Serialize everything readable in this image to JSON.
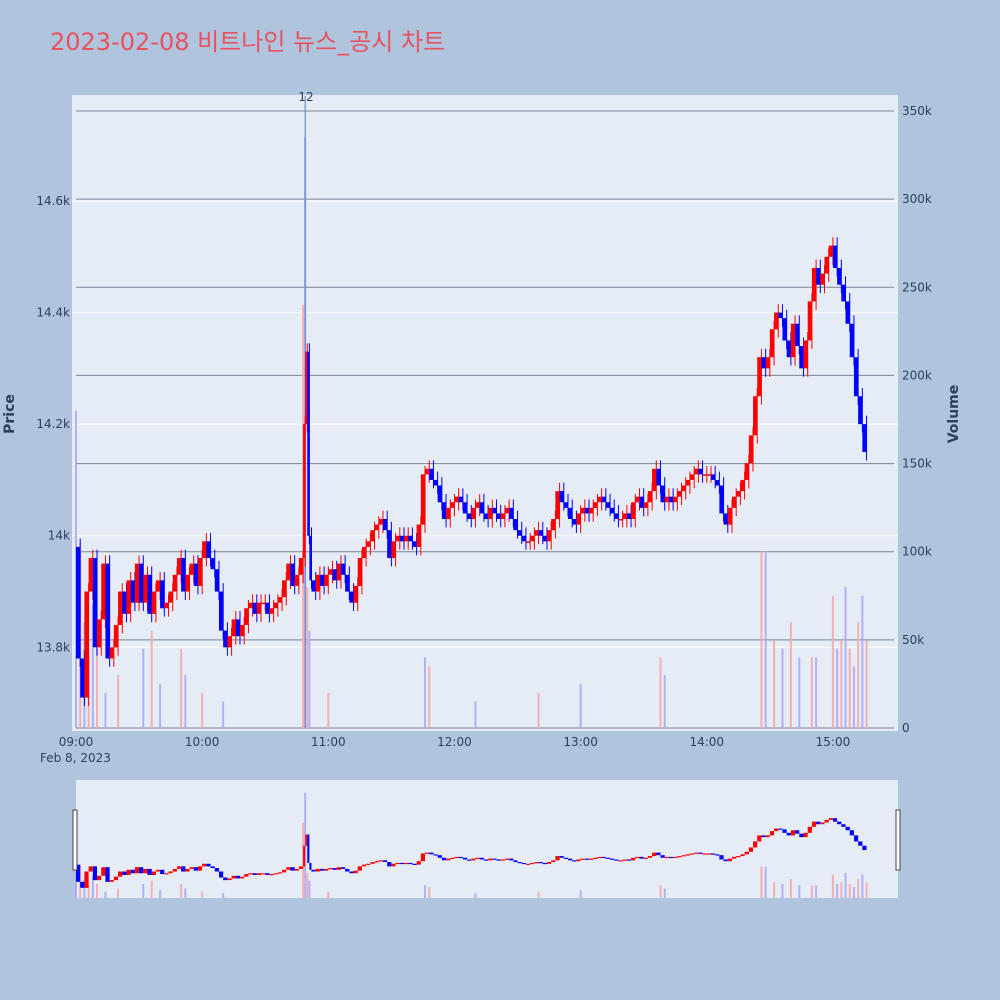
{
  "chart_data": {
    "type": "candlestick",
    "title": "2023-02-08 비트나인 뉴스_공시 차트",
    "x_axis": {
      "tick_labels": [
        "09:00",
        "10:00",
        "11:00",
        "12:00",
        "13:00",
        "14:00",
        "15:00"
      ],
      "date_label": "Feb 8, 2023",
      "range": [
        "09:00",
        "15:30"
      ]
    },
    "y_axis_price": {
      "label": "Price",
      "tick_labels": [
        "13.8k",
        "14k",
        "14.2k",
        "14.4k",
        "14.6k"
      ],
      "tick_values": [
        13800,
        14000,
        14200,
        14400,
        14600
      ],
      "range": [
        13650,
        14790
      ]
    },
    "y_axis_volume": {
      "label": "Volume",
      "tick_labels": [
        "0",
        "50k",
        "100k",
        "150k",
        "200k",
        "250k",
        "300k",
        "350k"
      ],
      "tick_values": [
        0,
        50000,
        100000,
        150000,
        200000,
        250000,
        300000,
        350000
      ],
      "range": [
        0,
        358000
      ]
    },
    "annotation": {
      "label": "12",
      "time": "10:49"
    },
    "increasing_color": "#ff0000",
    "decreasing_color": "#0000ff",
    "price_path": [
      [
        "09:00",
        13980
      ],
      [
        "09:02",
        13780
      ],
      [
        "09:04",
        13710
      ],
      [
        "09:06",
        13900
      ],
      [
        "09:08",
        13960
      ],
      [
        "09:10",
        13800
      ],
      [
        "09:12",
        13850
      ],
      [
        "09:14",
        13950
      ],
      [
        "09:16",
        13780
      ],
      [
        "09:18",
        13800
      ],
      [
        "09:20",
        13840
      ],
      [
        "09:22",
        13900
      ],
      [
        "09:24",
        13860
      ],
      [
        "09:26",
        13920
      ],
      [
        "09:28",
        13880
      ],
      [
        "09:30",
        13950
      ],
      [
        "09:32",
        13880
      ],
      [
        "09:34",
        13930
      ],
      [
        "09:36",
        13860
      ],
      [
        "09:38",
        13900
      ],
      [
        "09:40",
        13920
      ],
      [
        "09:42",
        13870
      ],
      [
        "09:44",
        13880
      ],
      [
        "09:46",
        13900
      ],
      [
        "09:48",
        13930
      ],
      [
        "09:50",
        13960
      ],
      [
        "09:52",
        13900
      ],
      [
        "09:54",
        13930
      ],
      [
        "09:56",
        13950
      ],
      [
        "09:58",
        13910
      ],
      [
        "10:00",
        13960
      ],
      [
        "10:02",
        13990
      ],
      [
        "10:04",
        13960
      ],
      [
        "10:06",
        13940
      ],
      [
        "10:08",
        13900
      ],
      [
        "10:10",
        13830
      ],
      [
        "10:12",
        13800
      ],
      [
        "10:14",
        13820
      ],
      [
        "10:16",
        13850
      ],
      [
        "10:18",
        13820
      ],
      [
        "10:20",
        13840
      ],
      [
        "10:22",
        13870
      ],
      [
        "10:24",
        13880
      ],
      [
        "10:26",
        13860
      ],
      [
        "10:28",
        13880
      ],
      [
        "10:30",
        13880
      ],
      [
        "10:32",
        13860
      ],
      [
        "10:34",
        13870
      ],
      [
        "10:36",
        13880
      ],
      [
        "10:38",
        13890
      ],
      [
        "10:40",
        13920
      ],
      [
        "10:42",
        13950
      ],
      [
        "10:44",
        13910
      ],
      [
        "10:46",
        13930
      ],
      [
        "10:48",
        13960
      ],
      [
        "10:49",
        14200
      ],
      [
        "10:50",
        14330
      ],
      [
        "10:51",
        14000
      ],
      [
        "10:52",
        13920
      ],
      [
        "10:54",
        13900
      ],
      [
        "10:56",
        13930
      ],
      [
        "10:58",
        13910
      ],
      [
        "11:00",
        13930
      ],
      [
        "11:02",
        13940
      ],
      [
        "11:04",
        13920
      ],
      [
        "11:06",
        13950
      ],
      [
        "11:08",
        13930
      ],
      [
        "11:10",
        13900
      ],
      [
        "11:12",
        13880
      ],
      [
        "11:14",
        13910
      ],
      [
        "11:16",
        13960
      ],
      [
        "11:18",
        13980
      ],
      [
        "11:20",
        13990
      ],
      [
        "11:22",
        14010
      ],
      [
        "11:24",
        14020
      ],
      [
        "11:26",
        14030
      ],
      [
        "11:28",
        14010
      ],
      [
        "11:30",
        13960
      ],
      [
        "11:32",
        13990
      ],
      [
        "11:34",
        14000
      ],
      [
        "11:36",
        13990
      ],
      [
        "11:38",
        14000
      ],
      [
        "11:40",
        13990
      ],
      [
        "11:42",
        13980
      ],
      [
        "11:44",
        14020
      ],
      [
        "11:46",
        14110
      ],
      [
        "11:48",
        14120
      ],
      [
        "11:50",
        14100
      ],
      [
        "11:52",
        14090
      ],
      [
        "11:54",
        14060
      ],
      [
        "11:56",
        14030
      ],
      [
        "11:58",
        14050
      ],
      [
        "12:00",
        14060
      ],
      [
        "12:02",
        14070
      ],
      [
        "12:04",
        14060
      ],
      [
        "12:06",
        14040
      ],
      [
        "12:08",
        14030
      ],
      [
        "12:10",
        14050
      ],
      [
        "12:12",
        14060
      ],
      [
        "12:14",
        14040
      ],
      [
        "12:16",
        14030
      ],
      [
        "12:18",
        14050
      ],
      [
        "12:20",
        14040
      ],
      [
        "12:22",
        14030
      ],
      [
        "12:24",
        14040
      ],
      [
        "12:26",
        14050
      ],
      [
        "12:28",
        14030
      ],
      [
        "12:30",
        14010
      ],
      [
        "12:32",
        14000
      ],
      [
        "12:34",
        13990
      ],
      [
        "12:36",
        13990
      ],
      [
        "12:38",
        14000
      ],
      [
        "12:40",
        14010
      ],
      [
        "12:42",
        14000
      ],
      [
        "12:44",
        13990
      ],
      [
        "12:46",
        14010
      ],
      [
        "12:48",
        14030
      ],
      [
        "12:50",
        14080
      ],
      [
        "12:52",
        14060
      ],
      [
        "12:54",
        14050
      ],
      [
        "12:56",
        14030
      ],
      [
        "12:58",
        14020
      ],
      [
        "13:00",
        14040
      ],
      [
        "13:02",
        14050
      ],
      [
        "13:04",
        14040
      ],
      [
        "13:06",
        14050
      ],
      [
        "13:08",
        14060
      ],
      [
        "13:10",
        14070
      ],
      [
        "13:12",
        14060
      ],
      [
        "13:14",
        14050
      ],
      [
        "13:16",
        14040
      ],
      [
        "13:18",
        14030
      ],
      [
        "13:20",
        14030
      ],
      [
        "13:22",
        14040
      ],
      [
        "13:24",
        14030
      ],
      [
        "13:26",
        14060
      ],
      [
        "13:28",
        14070
      ],
      [
        "13:30",
        14050
      ],
      [
        "13:32",
        14060
      ],
      [
        "13:34",
        14080
      ],
      [
        "13:36",
        14120
      ],
      [
        "13:38",
        14090
      ],
      [
        "13:40",
        14060
      ],
      [
        "13:42",
        14070
      ],
      [
        "13:44",
        14060
      ],
      [
        "13:46",
        14070
      ],
      [
        "13:48",
        14080
      ],
      [
        "13:50",
        14090
      ],
      [
        "13:52",
        14100
      ],
      [
        "13:54",
        14110
      ],
      [
        "13:56",
        14120
      ],
      [
        "13:58",
        14110
      ],
      [
        "14:00",
        14110
      ],
      [
        "14:02",
        14110
      ],
      [
        "14:04",
        14100
      ],
      [
        "14:06",
        14090
      ],
      [
        "14:08",
        14040
      ],
      [
        "14:10",
        14020
      ],
      [
        "14:12",
        14050
      ],
      [
        "14:14",
        14070
      ],
      [
        "14:16",
        14080
      ],
      [
        "14:18",
        14100
      ],
      [
        "14:20",
        14130
      ],
      [
        "14:22",
        14180
      ],
      [
        "14:24",
        14250
      ],
      [
        "14:26",
        14320
      ],
      [
        "14:28",
        14300
      ],
      [
        "14:30",
        14320
      ],
      [
        "14:32",
        14370
      ],
      [
        "14:34",
        14400
      ],
      [
        "14:36",
        14390
      ],
      [
        "14:38",
        14350
      ],
      [
        "14:40",
        14320
      ],
      [
        "14:42",
        14380
      ],
      [
        "14:44",
        14340
      ],
      [
        "14:46",
        14300
      ],
      [
        "14:48",
        14350
      ],
      [
        "14:50",
        14420
      ],
      [
        "14:52",
        14480
      ],
      [
        "14:54",
        14450
      ],
      [
        "14:56",
        14470
      ],
      [
        "14:58",
        14500
      ],
      [
        "15:00",
        14520
      ],
      [
        "15:02",
        14480
      ],
      [
        "15:04",
        14450
      ],
      [
        "15:06",
        14420
      ],
      [
        "15:08",
        14380
      ],
      [
        "15:10",
        14320
      ],
      [
        "15:12",
        14250
      ],
      [
        "15:14",
        14200
      ],
      [
        "15:16",
        14150
      ]
    ],
    "volume_spikes": [
      [
        "09:00",
        180000
      ],
      [
        "09:02",
        105000
      ],
      [
        "09:04",
        60000
      ],
      [
        "09:06",
        40000
      ],
      [
        "09:08",
        70000
      ],
      [
        "09:10",
        45000
      ],
      [
        "09:14",
        20000
      ],
      [
        "09:20",
        30000
      ],
      [
        "09:32",
        45000
      ],
      [
        "09:36",
        55000
      ],
      [
        "09:40",
        25000
      ],
      [
        "09:50",
        45000
      ],
      [
        "09:52",
        30000
      ],
      [
        "10:00",
        20000
      ],
      [
        "10:10",
        15000
      ],
      [
        "10:48",
        240000
      ],
      [
        "10:49",
        335000
      ],
      [
        "10:50",
        80000
      ],
      [
        "10:51",
        55000
      ],
      [
        "11:00",
        20000
      ],
      [
        "11:46",
        40000
      ],
      [
        "11:48",
        35000
      ],
      [
        "12:10",
        15000
      ],
      [
        "12:40",
        20000
      ],
      [
        "13:00",
        25000
      ],
      [
        "13:38",
        40000
      ],
      [
        "13:40",
        30000
      ],
      [
        "14:26",
        100000
      ],
      [
        "14:28",
        100000
      ],
      [
        "14:32",
        50000
      ],
      [
        "14:36",
        45000
      ],
      [
        "14:40",
        60000
      ],
      [
        "14:44",
        40000
      ],
      [
        "14:50",
        40000
      ],
      [
        "14:52",
        40000
      ],
      [
        "15:00",
        75000
      ],
      [
        "15:02",
        45000
      ],
      [
        "15:04",
        50000
      ],
      [
        "15:06",
        80000
      ],
      [
        "15:08",
        45000
      ],
      [
        "15:10",
        35000
      ],
      [
        "15:12",
        60000
      ],
      [
        "15:14",
        75000
      ],
      [
        "15:16",
        50000
      ]
    ]
  }
}
